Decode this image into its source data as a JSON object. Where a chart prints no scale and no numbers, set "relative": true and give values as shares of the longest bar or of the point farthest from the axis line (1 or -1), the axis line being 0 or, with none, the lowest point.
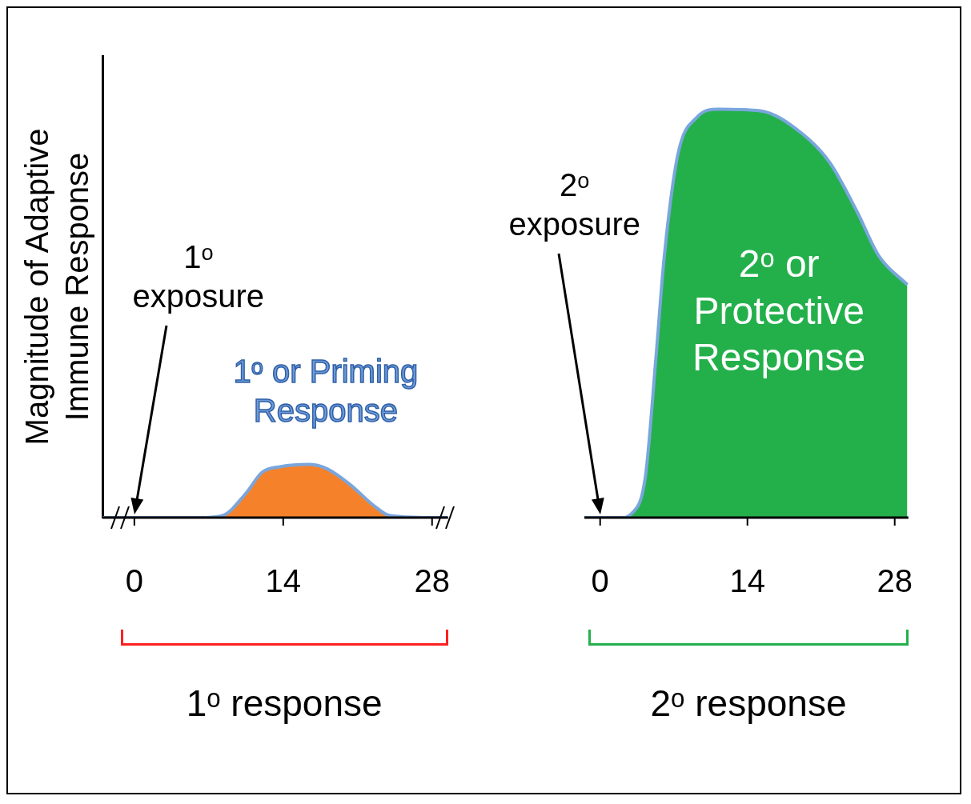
{
  "chart_data": [
    {
      "type": "area",
      "relative": true,
      "ylabel": "Magnitude of Adaptive Immune Response",
      "xlim": [
        -3,
        29.5
      ],
      "xticks": [
        0,
        14,
        28
      ],
      "series": [
        {
          "color": "#f5822a",
          "x": [
            -3,
            0,
            6,
            8.3,
            10.5,
            12,
            13.8,
            16.4,
            18.1,
            20.3,
            22.5,
            24,
            28,
            29.5
          ],
          "values": [
            0,
            0,
            0,
            0.04,
            0.46,
            0.85,
            0.96,
            1,
            0.92,
            0.62,
            0.23,
            0.04,
            0,
            0
          ]
        }
      ],
      "annotations": [
        "1ᵒ exposure",
        "1ᵒ or Priming Response",
        "1ᵒ response"
      ],
      "grid": false,
      "legend": false
    },
    {
      "type": "area",
      "relative": true,
      "xlim": [
        -1.5,
        29.3
      ],
      "xticks": [
        0,
        14,
        28
      ],
      "series": [
        {
          "color": "#23b04b",
          "x": [
            -1.5,
            0,
            2,
            3,
            4.3,
            5.3,
            6.1,
            7.4,
            9.2,
            11.3,
            15.2,
            19.2,
            21.8,
            24.4,
            26.5,
            29.2
          ],
          "values": [
            0,
            0,
            0,
            0.01,
            0.1,
            0.39,
            0.64,
            0.89,
            0.98,
            1,
            0.996,
            0.94,
            0.87,
            0.75,
            0.64,
            0.57
          ]
        }
      ],
      "annotations": [
        "2ᵒ exposure",
        "2ᵒ or Protective Response",
        "2ᵒ response"
      ],
      "grid": false,
      "legend": false
    }
  ]
}
